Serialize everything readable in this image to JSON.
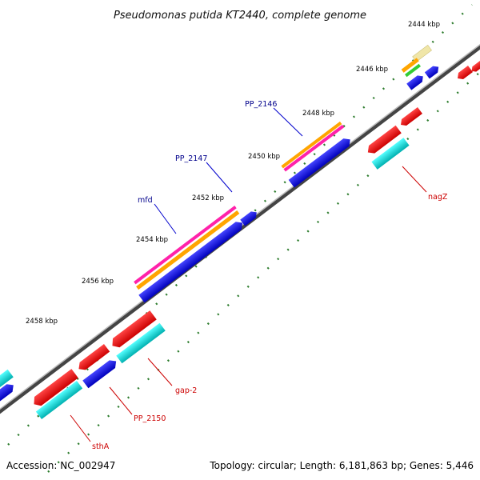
{
  "title": "Pseudomonas putida KT2440, complete genome",
  "accession": "Accession: NC_002947",
  "summary": "Topology: circular; Length: 6,181,863 bp; Genes: 5,446",
  "kbp_labels": [
    "2444 kbp",
    "2446 kbp",
    "2448 kbp",
    "2450 kbp",
    "2452 kbp",
    "2454 kbp",
    "2456 kbp",
    "2458 kbp"
  ],
  "gene_labels_top": [
    "PP_2146",
    "PP_2147",
    "mfd"
  ],
  "gene_labels_bottom": [
    "nagZ",
    "gap-2",
    "PP_2150",
    "sthA"
  ],
  "colors": {
    "forward_cds": "#0000dd",
    "reverse_cds": "#ff0000",
    "reverse_cds_light": "#00cccc",
    "feature_magenta": "#ff22aa",
    "feature_orange": "#ffa500",
    "feature_green": "#33cc33",
    "feature_khaki": "#f0e6a8",
    "backbone": "#555555",
    "tick": "#2e7d2e",
    "label_blue": "#00008b",
    "label_red": "#cc0000"
  }
}
